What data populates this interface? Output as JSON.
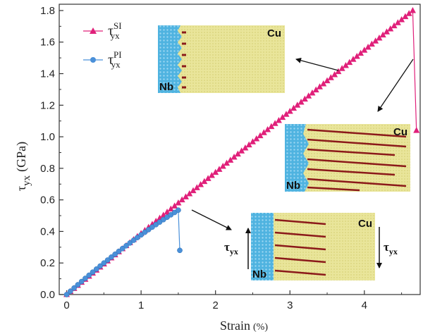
{
  "chart_data": {
    "type": "line",
    "title": "",
    "xlabel": "Strain",
    "xlabel_unit": "(%)",
    "ylabel_main": "τ",
    "ylabel_sub": "yx",
    "ylabel_unit": "(GPa)",
    "xlim": [
      -0.1,
      4.75
    ],
    "ylim": [
      0,
      1.84
    ],
    "x_ticks": [
      0,
      1,
      2,
      3,
      4
    ],
    "y_ticks": [
      0.0,
      0.2,
      0.4,
      0.6,
      0.8,
      1.0,
      1.2,
      1.4,
      1.6,
      1.8
    ],
    "y_tick_labels": [
      "0.0",
      "0.2",
      "0.4",
      "0.6",
      "0.8",
      "1.0",
      "1.2",
      "1.4",
      "1.6",
      "1.8"
    ],
    "x_tick_labels": [
      "0",
      "1",
      "2",
      "3",
      "4"
    ],
    "series": [
      {
        "name": "τSI yx",
        "legend_main": "τ",
        "legend_sup": "SI",
        "legend_sub": "yx",
        "color": "#e0207a",
        "marker": "triangle",
        "x_start": 0.0,
        "x_end": 4.65,
        "step": 0.05,
        "peak": 1.8,
        "drop_x": 4.7,
        "drop_y": 1.04
      },
      {
        "name": "τPI yx",
        "legend_main": "τ",
        "legend_sup": "PI",
        "legend_sub": "yx",
        "color": "#4a90d9",
        "marker": "circle",
        "x_start": 0.0,
        "x_end": 1.5,
        "step": 0.05,
        "peak": 0.535,
        "drop_x": 1.52,
        "drop_y": 0.28
      }
    ],
    "insets": [
      {
        "labels": [
          "Nb",
          "Cu"
        ]
      },
      {
        "labels": [
          "Nb",
          "Cu"
        ]
      },
      {
        "labels": [
          "Nb",
          "Cu"
        ],
        "tau_left": "τ",
        "tau_left_sub": "yx",
        "tau_right": "τ",
        "tau_right_sub": "yx"
      }
    ]
  }
}
